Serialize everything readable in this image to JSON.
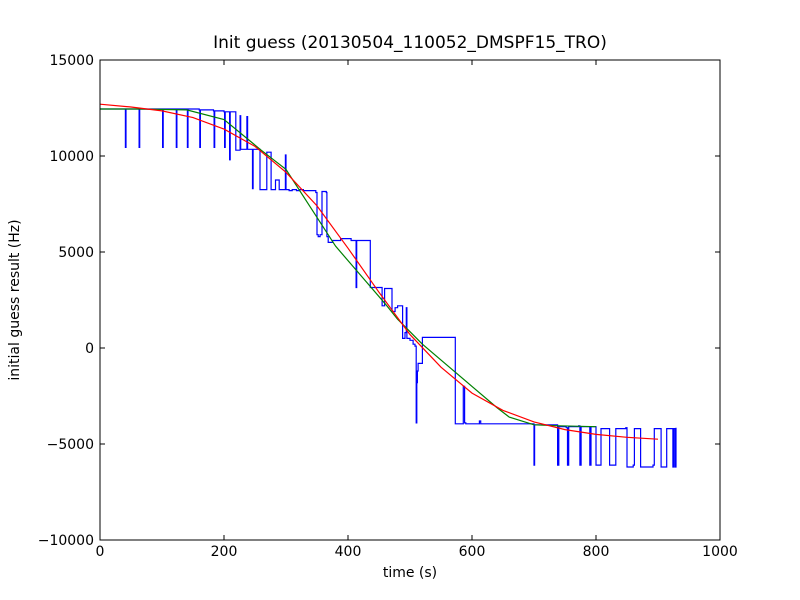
{
  "chart_data": {
    "type": "line",
    "title": "Init guess (20130504_110052_DMSPF15_TRO)",
    "xlabel": "time (s)",
    "ylabel": "initial guess result (Hz)",
    "xlim": [
      0,
      1000
    ],
    "ylim": [
      -10000,
      15000
    ],
    "x_ticks": [
      0,
      200,
      400,
      600,
      800,
      1000
    ],
    "y_ticks": [
      15000,
      10000,
      5000,
      0,
      -5000,
      -10000
    ],
    "x_tick_labels": [
      "0",
      "200",
      "400",
      "600",
      "800",
      "1000"
    ],
    "y_tick_labels": [
      "15000",
      "10000",
      "5000",
      "0",
      "−5000",
      "−10000"
    ],
    "grid": false,
    "legend": false,
    "series": [
      {
        "color": "#0000ff",
        "style": "step",
        "points": [
          [
            0,
            12450
          ],
          [
            40,
            12450
          ],
          [
            41,
            10450
          ],
          [
            42,
            12450
          ],
          [
            62,
            12450
          ],
          [
            63,
            10450
          ],
          [
            64,
            12450
          ],
          [
            100,
            12450
          ],
          [
            101,
            10450
          ],
          [
            102,
            12450
          ],
          [
            122,
            12450
          ],
          [
            123,
            10450
          ],
          [
            124,
            12450
          ],
          [
            140,
            12450
          ],
          [
            141,
            10450
          ],
          [
            142,
            12450
          ],
          [
            160,
            12400
          ],
          [
            161,
            10450
          ],
          [
            162,
            12400
          ],
          [
            183,
            12350
          ],
          [
            184,
            10450
          ],
          [
            185,
            12350
          ],
          [
            200,
            12300
          ],
          [
            201,
            10450
          ],
          [
            202,
            12300
          ],
          [
            208,
            12300
          ],
          [
            209,
            9800
          ],
          [
            210,
            12300
          ],
          [
            218,
            12300
          ],
          [
            219,
            10300
          ],
          [
            220,
            10300
          ],
          [
            225,
            10300
          ],
          [
            226,
            12100
          ],
          [
            227,
            10350
          ],
          [
            236,
            10350
          ],
          [
            237,
            12050
          ],
          [
            238,
            10350
          ],
          [
            245,
            10350
          ],
          [
            246,
            8300
          ],
          [
            247,
            10350
          ],
          [
            257,
            10350
          ],
          [
            258,
            8250
          ],
          [
            259,
            8250
          ],
          [
            268,
            8250
          ],
          [
            269,
            10200
          ],
          [
            270,
            10200
          ],
          [
            275,
            10200
          ],
          [
            276,
            8250
          ],
          [
            277,
            8250
          ],
          [
            282,
            8250
          ],
          [
            283,
            8750
          ],
          [
            288,
            8750
          ],
          [
            289,
            8250
          ],
          [
            298,
            8250
          ],
          [
            299,
            10050
          ],
          [
            300,
            8250
          ],
          [
            305,
            8200
          ],
          [
            310,
            8250
          ],
          [
            317,
            8200
          ],
          [
            322,
            8250
          ],
          [
            327,
            8250
          ],
          [
            328,
            8200
          ],
          [
            348,
            8100
          ],
          [
            350,
            5900
          ],
          [
            352,
            5800
          ],
          [
            355,
            5900
          ],
          [
            358,
            8150
          ],
          [
            365,
            8100
          ],
          [
            366,
            5800
          ],
          [
            368,
            5500
          ],
          [
            375,
            5600
          ],
          [
            380,
            5600
          ],
          [
            388,
            5700
          ],
          [
            392,
            5700
          ],
          [
            405,
            5600
          ],
          [
            410,
            5600
          ],
          [
            413,
            3150
          ],
          [
            414,
            5600
          ],
          [
            435,
            5600
          ],
          [
            436,
            3150
          ],
          [
            454,
            3150
          ],
          [
            455,
            2200
          ],
          [
            458,
            2200
          ],
          [
            459,
            3100
          ],
          [
            470,
            3100
          ],
          [
            471,
            1900
          ],
          [
            475,
            1900
          ],
          [
            476,
            2100
          ],
          [
            479,
            2100
          ],
          [
            480,
            2200
          ],
          [
            486,
            2200
          ],
          [
            488,
            500
          ],
          [
            492,
            800
          ],
          [
            494,
            2100
          ],
          [
            495,
            500
          ],
          [
            500,
            400
          ],
          [
            505,
            200
          ],
          [
            508,
            100
          ],
          [
            510,
            -3900
          ],
          [
            511,
            -1800
          ],
          [
            512,
            -1200
          ],
          [
            513,
            -800
          ],
          [
            520,
            550
          ],
          [
            572,
            550
          ],
          [
            573,
            -3950
          ],
          [
            585,
            -3950
          ],
          [
            586,
            -2000
          ],
          [
            588,
            -3900
          ],
          [
            590,
            -3950
          ],
          [
            610,
            -3950
          ],
          [
            612,
            -3800
          ],
          [
            614,
            -3950
          ],
          [
            620,
            -3950
          ],
          [
            660,
            -3950
          ],
          [
            680,
            -3950
          ],
          [
            699,
            -3950
          ],
          [
            700,
            -6100
          ],
          [
            701,
            -4000
          ],
          [
            720,
            -4000
          ],
          [
            736,
            -4000
          ],
          [
            738,
            -6100
          ],
          [
            740,
            -4100
          ],
          [
            752,
            -4150
          ],
          [
            754,
            -6100
          ],
          [
            756,
            -4100
          ],
          [
            772,
            -4050
          ],
          [
            774,
            -6100
          ],
          [
            776,
            -4100
          ],
          [
            788,
            -4100
          ],
          [
            790,
            -6100
          ],
          [
            792,
            -4100
          ],
          [
            798,
            -4100
          ],
          [
            800,
            -6100
          ],
          [
            806,
            -6100
          ],
          [
            808,
            -4200
          ],
          [
            820,
            -4200
          ],
          [
            822,
            -6100
          ],
          [
            830,
            -6100
          ],
          [
            832,
            -4200
          ],
          [
            848,
            -4150
          ],
          [
            850,
            -6200
          ],
          [
            860,
            -6100
          ],
          [
            862,
            -4200
          ],
          [
            870,
            -4200
          ],
          [
            872,
            -6200
          ],
          [
            890,
            -6200
          ],
          [
            892,
            -6100
          ],
          [
            894,
            -4200
          ],
          [
            903,
            -4200
          ],
          [
            905,
            -6200
          ],
          [
            912,
            -6200
          ],
          [
            914,
            -4200
          ],
          [
            922,
            -4200
          ],
          [
            924,
            -6200
          ],
          [
            926,
            -4200
          ],
          [
            928,
            -6200
          ],
          [
            929,
            -4150
          ]
        ]
      },
      {
        "color": "#008000",
        "style": "polyline",
        "points": [
          [
            0,
            12450
          ],
          [
            60,
            12450
          ],
          [
            140,
            12400
          ],
          [
            200,
            11900
          ],
          [
            260,
            10300
          ],
          [
            300,
            9300
          ],
          [
            340,
            7300
          ],
          [
            380,
            5300
          ],
          [
            420,
            3800
          ],
          [
            460,
            2300
          ],
          [
            480,
            1500
          ],
          [
            520,
            200
          ],
          [
            560,
            -900
          ],
          [
            600,
            -2000
          ],
          [
            640,
            -3100
          ],
          [
            660,
            -3600
          ],
          [
            700,
            -4000
          ],
          [
            740,
            -4050
          ],
          [
            800,
            -4100
          ]
        ]
      },
      {
        "color": "#ff0000",
        "style": "polyline",
        "points": [
          [
            0,
            12700
          ],
          [
            50,
            12550
          ],
          [
            100,
            12350
          ],
          [
            150,
            12000
          ],
          [
            200,
            11400
          ],
          [
            250,
            10500
          ],
          [
            300,
            9150
          ],
          [
            350,
            7400
          ],
          [
            400,
            5200
          ],
          [
            450,
            2900
          ],
          [
            500,
            700
          ],
          [
            550,
            -1000
          ],
          [
            600,
            -2350
          ],
          [
            650,
            -3250
          ],
          [
            700,
            -3850
          ],
          [
            750,
            -4250
          ],
          [
            800,
            -4500
          ],
          [
            850,
            -4650
          ],
          [
            900,
            -4750
          ]
        ]
      }
    ]
  }
}
